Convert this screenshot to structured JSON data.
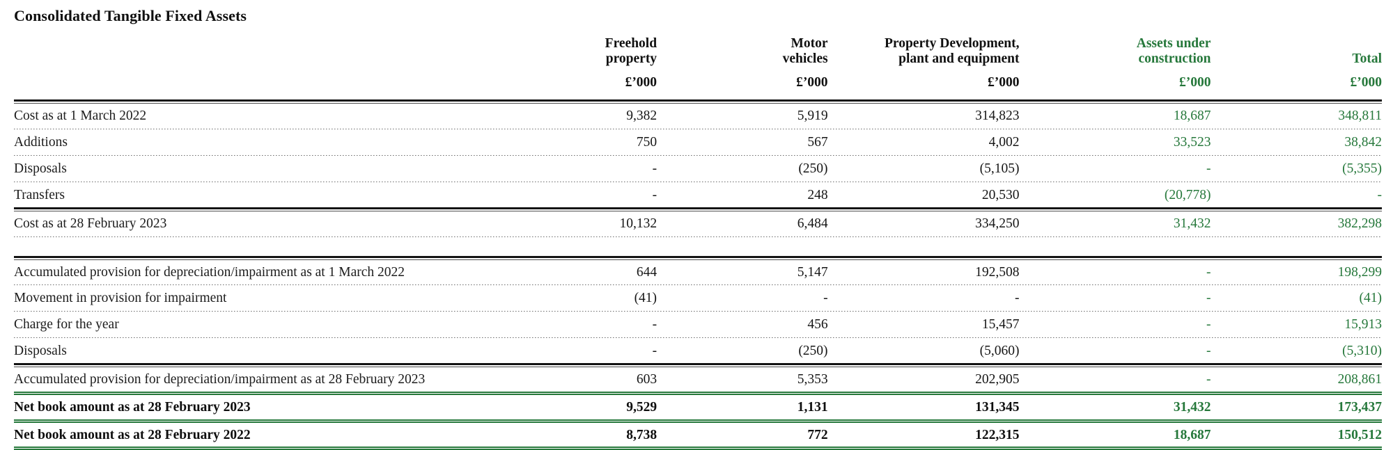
{
  "title": "Consolidated Tangible Fixed Assets",
  "colors": {
    "accent_green": "#26783b",
    "text": "#161616"
  },
  "table": {
    "columns": [
      {
        "label": "",
        "unit": "",
        "green": false
      },
      {
        "label": "Freehold\nproperty",
        "unit": "£’000",
        "green": false
      },
      {
        "label": "Motor\nvehicles",
        "unit": "£’000",
        "green": false
      },
      {
        "label": "Property Development,\nplant and equipment",
        "unit": "£’000",
        "green": false
      },
      {
        "label": "Assets under\nconstruction",
        "unit": "£’000",
        "green": true
      },
      {
        "label": "Total",
        "unit": "£’000",
        "green": true
      }
    ],
    "rows": [
      {
        "label": "Cost as at 1 March 2022",
        "values": [
          "9,382",
          "5,919",
          "314,823",
          "18,687",
          "348,811"
        ],
        "bold": false,
        "border_after": "dotted"
      },
      {
        "label": "Additions",
        "values": [
          "750",
          "567",
          "4,002",
          "33,523",
          "38,842"
        ],
        "bold": false,
        "border_after": "dotted"
      },
      {
        "label": "Disposals",
        "values": [
          "-",
          "(250)",
          "(5,105)",
          "-",
          "(5,355)"
        ],
        "bold": false,
        "border_after": "dotted"
      },
      {
        "label": "Transfers",
        "values": [
          "-",
          "248",
          "20,530",
          "(20,778)",
          "-"
        ],
        "bold": false,
        "border_after": "black"
      },
      {
        "label": "Cost as at 28 February 2023",
        "values": [
          "10,132",
          "6,484",
          "334,250",
          "31,432",
          "382,298"
        ],
        "bold": false,
        "border_after": "dotted"
      },
      {
        "spacer": true,
        "label": "",
        "values": [],
        "bold": false,
        "border_after": "black"
      },
      {
        "label": "Accumulated provision for depreciation/impairment as at 1 March 2022",
        "values": [
          "644",
          "5,147",
          "192,508",
          "-",
          "198,299"
        ],
        "bold": false,
        "border_after": "dotted"
      },
      {
        "label": "Movement in provision for impairment",
        "values": [
          "(41)",
          "-",
          "-",
          "-",
          "(41)"
        ],
        "bold": false,
        "border_after": "dotted"
      },
      {
        "label": "Charge for the year",
        "values": [
          "-",
          "456",
          "15,457",
          "-",
          "15,913"
        ],
        "bold": false,
        "border_after": "dotted"
      },
      {
        "label": "Disposals",
        "values": [
          "-",
          "(250)",
          "(5,060)",
          "-",
          "(5,310)"
        ],
        "bold": false,
        "border_after": "black"
      },
      {
        "label": "Accumulated provision for depreciation/impairment as at 28 February 2023",
        "values": [
          "603",
          "5,353",
          "202,905",
          "-",
          "208,861"
        ],
        "bold": false,
        "border_after": "green"
      },
      {
        "label": "Net book amount as at 28 February 2023",
        "values": [
          "9,529",
          "1,131",
          "131,345",
          "31,432",
          "173,437"
        ],
        "bold": true,
        "border_after": "green"
      },
      {
        "label": "Net book amount as at 28 February 2022",
        "values": [
          "8,738",
          "772",
          "122,315",
          "18,687",
          "150,512"
        ],
        "bold": true,
        "border_after": "green"
      }
    ]
  }
}
